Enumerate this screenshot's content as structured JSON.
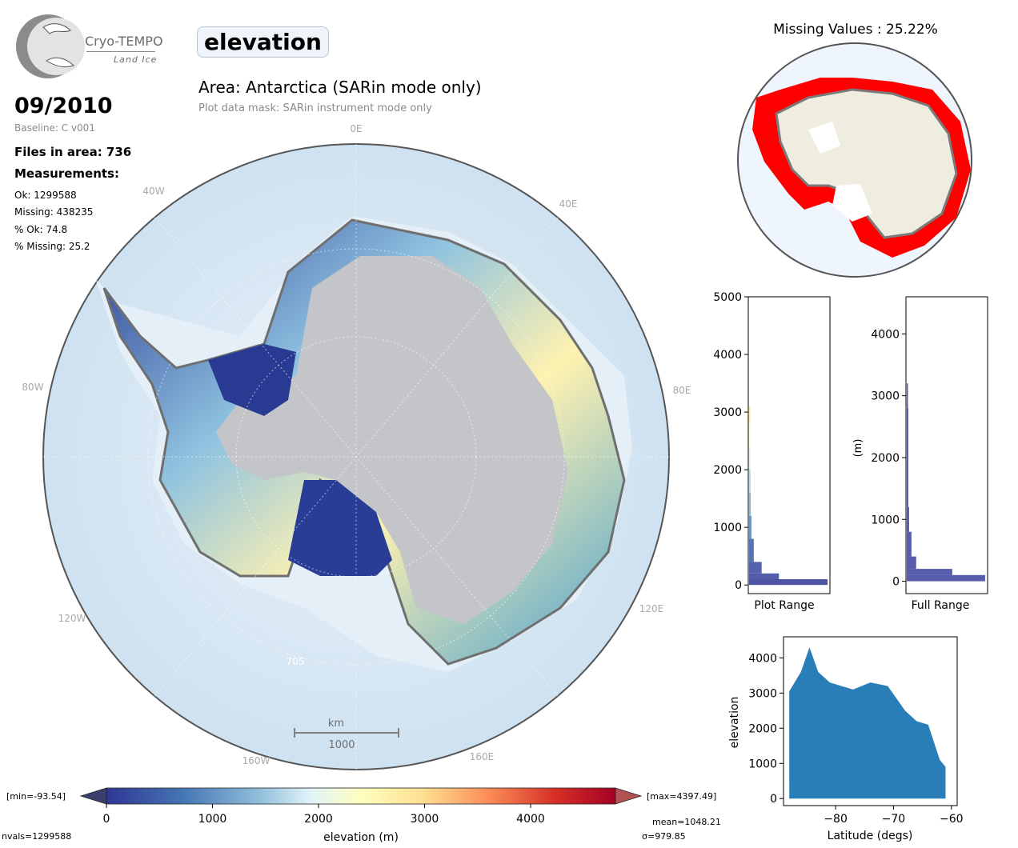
{
  "header": {
    "logo_name": "Cryo-TEMPO",
    "logo_sub": "Land Ice",
    "parameter": "elevation",
    "area_title": "Area: Antarctica (SARin mode only)",
    "mask_note": "Plot data mask: SARin instrument mode only"
  },
  "info": {
    "date": "09/2010",
    "baseline": "Baseline: C v001",
    "files": "Files in area: 736",
    "measurements_label": "Measurements:",
    "ok": "Ok: 1299588",
    "missing": "Missing: 438235",
    "pct_ok": "% Ok: 74.8",
    "pct_missing": "% Missing: 25.2"
  },
  "map": {
    "lon_labels": {
      "l0": "0E",
      "l40w": "40W",
      "l40e": "40E",
      "l80w": "80W",
      "l80e": "80E",
      "l120w": "120W",
      "l120e": "120E",
      "l160w": "160W",
      "l160e": "160E"
    },
    "lat_label": "70S",
    "scale_unit": "km",
    "scale_value": "1000"
  },
  "missing_map": {
    "title": "Missing Values : 25.22%"
  },
  "colorbar": {
    "min_label": "[min=-93.54]",
    "max_label": "[max=4397.49]",
    "xlabel": "elevation (m)",
    "nvals": "nvals=1299588",
    "mean": "mean=1048.21",
    "sigma": "σ=979.85",
    "ticks": [
      "0",
      "1000",
      "2000",
      "3000",
      "4000"
    ],
    "range": [
      0,
      4800
    ]
  },
  "colors": {
    "ocean": "#d6e6f3",
    "ice": "#c6c8cb",
    "coast": "#7a7a7a",
    "missing": "#ff0000",
    "histogram": "#3b3f9e",
    "scatter": "#1f77b4"
  },
  "chart_data": [
    {
      "type": "bar",
      "name": "plot-range-histogram",
      "orientation": "horizontal",
      "xlabel": "Plot Range",
      "ylim": [
        -150,
        5000
      ],
      "yticks": [
        "0",
        "1000",
        "2000",
        "3000",
        "4000",
        "5000"
      ],
      "note": "horizontal histogram coloured by elevation colormap",
      "bins": [
        {
          "y": 0,
          "count": 100
        },
        {
          "y": 100,
          "count": 38
        },
        {
          "y": 200,
          "count": 16
        },
        {
          "y": 400,
          "count": 6
        },
        {
          "y": 800,
          "count": 3
        },
        {
          "y": 1200,
          "count": 2
        },
        {
          "y": 1600,
          "count": 2
        },
        {
          "y": 2000,
          "count": 2
        },
        {
          "y": 2400,
          "count": 2
        },
        {
          "y": 2800,
          "count": 1.5
        },
        {
          "y": 3000,
          "count": 0.5
        }
      ]
    },
    {
      "type": "bar",
      "name": "full-range-histogram",
      "orientation": "horizontal",
      "xlabel": "Full Range",
      "ylabel": "(m)",
      "ylim": [
        -200,
        4600
      ],
      "yticks": [
        "0",
        "1000",
        "2000",
        "3000",
        "4000"
      ],
      "bins": [
        {
          "y": 0,
          "count": 100
        },
        {
          "y": 100,
          "count": 58
        },
        {
          "y": 200,
          "count": 12
        },
        {
          "y": 400,
          "count": 6
        },
        {
          "y": 800,
          "count": 3
        },
        {
          "y": 1200,
          "count": 2
        },
        {
          "y": 1600,
          "count": 2
        },
        {
          "y": 2000,
          "count": 2
        },
        {
          "y": 2400,
          "count": 2
        },
        {
          "y": 2800,
          "count": 1.5
        },
        {
          "y": 3100,
          "count": 0.5
        }
      ]
    },
    {
      "type": "scatter",
      "name": "elevation-vs-latitude",
      "xlabel": "Latitude (degs)",
      "ylabel": "elevation",
      "xlim": [
        -89,
        -59
      ],
      "ylim": [
        -200,
        4600
      ],
      "xticks": [
        "−80",
        "−70",
        "−60"
      ],
      "yticks": [
        "0",
        "1000",
        "2000",
        "3000",
        "4000"
      ],
      "envelope": [
        {
          "x": -88,
          "y": 3050
        },
        {
          "x": -86,
          "y": 3600
        },
        {
          "x": -84.5,
          "y": 4300
        },
        {
          "x": -83,
          "y": 3600
        },
        {
          "x": -81,
          "y": 3300
        },
        {
          "x": -79,
          "y": 3200
        },
        {
          "x": -77,
          "y": 3100
        },
        {
          "x": -74,
          "y": 3300
        },
        {
          "x": -71,
          "y": 3200
        },
        {
          "x": -68,
          "y": 2500
        },
        {
          "x": -66,
          "y": 2200
        },
        {
          "x": -64,
          "y": 2100
        },
        {
          "x": -62,
          "y": 1100
        },
        {
          "x": -61,
          "y": 900
        }
      ]
    }
  ]
}
